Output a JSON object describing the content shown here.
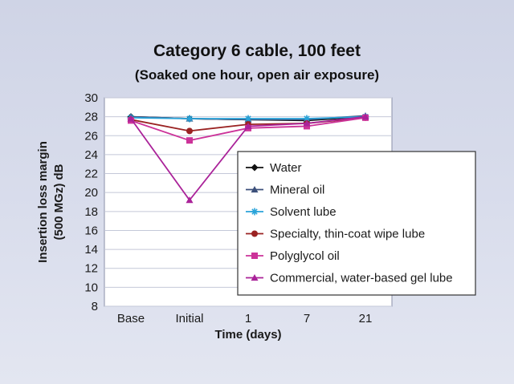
{
  "chart_data": {
    "type": "line",
    "title": "Category 6 cable, 100 feet",
    "subtitle": "(Soaked one hour, open air exposure)",
    "xlabel": "Time (days)",
    "ylabel_line1": "Insertion loss margin",
    "ylabel_line2": "(500 MGz) dB",
    "categories": [
      "Base",
      "Initial",
      "1",
      "7",
      "21"
    ],
    "ylim": [
      8,
      30
    ],
    "yticks": [
      8,
      10,
      12,
      14,
      16,
      18,
      20,
      22,
      24,
      26,
      28,
      30
    ],
    "grid": true,
    "legend_position": "right",
    "series": [
      {
        "name": "Water",
        "color": "#111111",
        "marker": "diamond",
        "values": [
          28.0,
          27.8,
          27.7,
          27.6,
          28.0
        ]
      },
      {
        "name": "Mineral oil",
        "color": "#3b4f7a",
        "marker": "triangle",
        "values": [
          28.0,
          27.8,
          27.7,
          27.7,
          28.1
        ]
      },
      {
        "name": "Solvent lube",
        "color": "#29a3d9",
        "marker": "star",
        "values": [
          27.9,
          27.8,
          27.8,
          27.8,
          28.0
        ]
      },
      {
        "name": "Specialty, thin-coat wipe lube",
        "color": "#9a2222",
        "marker": "circle",
        "values": [
          27.7,
          26.5,
          27.2,
          27.3,
          27.9
        ]
      },
      {
        "name": "Polyglycol oil",
        "color": "#cc3399",
        "marker": "square",
        "values": [
          27.6,
          25.5,
          26.8,
          27.0,
          27.9
        ]
      },
      {
        "name": "Commercial, water-based gel lube",
        "color": "#aa2299",
        "marker": "triangle",
        "values": [
          27.8,
          19.2,
          27.0,
          27.3,
          28.0
        ]
      }
    ]
  }
}
